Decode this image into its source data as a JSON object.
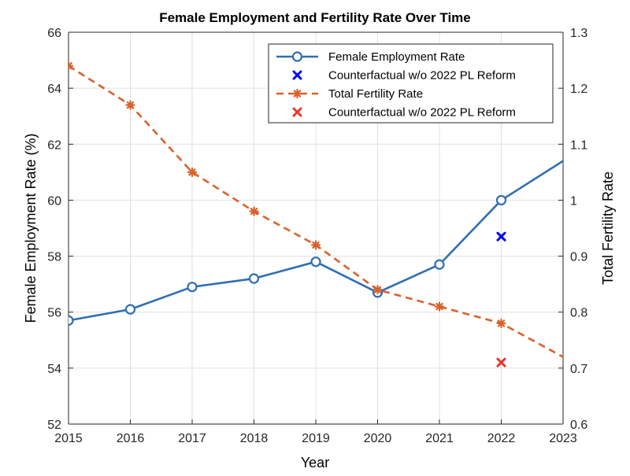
{
  "chart_data": {
    "type": "line",
    "title": "Female Employment and Fertility Rate Over Time",
    "xlabel": "Year",
    "ylabel_left": "Female Employment Rate (%)",
    "ylabel_right": "Total Fertility Rate",
    "xlim": [
      2015,
      2023
    ],
    "ylim_left": [
      52,
      66
    ],
    "ylim_right": [
      0.6,
      1.3
    ],
    "x_ticks": [
      "2015",
      "2016",
      "2017",
      "2018",
      "2019",
      "2020",
      "2021",
      "2022",
      "2023"
    ],
    "y_left_ticks": [
      "52",
      "54",
      "56",
      "58",
      "60",
      "62",
      "64",
      "66"
    ],
    "y_right_ticks": [
      "0.6",
      "0.7",
      "0.8",
      "0.9",
      "1",
      "1.1",
      "1.2",
      "1.3"
    ],
    "grid": true,
    "legend_position": "top-right",
    "series": [
      {
        "name": "Female Employment Rate",
        "axis": "left",
        "style": "solid-circle",
        "color": "#2f6fb3",
        "x": [
          2015,
          2016,
          2017,
          2018,
          2019,
          2020,
          2021,
          2022,
          2023
        ],
        "y": [
          55.7,
          56.1,
          56.9,
          57.2,
          57.8,
          56.7,
          57.7,
          60.0,
          61.4
        ],
        "marker_x": [
          2015,
          2016,
          2017,
          2018,
          2019,
          2020,
          2021,
          2022
        ]
      },
      {
        "name": "Counterfactual w/o 2022 PL Reform",
        "axis": "left",
        "style": "x-marker",
        "color": "#0000ff",
        "x": [
          2022
        ],
        "y": [
          58.7
        ]
      },
      {
        "name": "Total Fertility Rate",
        "axis": "right",
        "style": "dashed-asterisk",
        "color": "#d9622b",
        "x": [
          2015,
          2016,
          2017,
          2018,
          2019,
          2020,
          2021,
          2022,
          2023
        ],
        "y": [
          1.24,
          1.17,
          1.05,
          0.98,
          0.92,
          0.84,
          0.81,
          0.78,
          0.72
        ],
        "marker_x": [
          2015,
          2016,
          2017,
          2018,
          2019,
          2020,
          2021,
          2022
        ]
      },
      {
        "name": "Counterfactual w/o 2022 PL Reform",
        "axis": "right",
        "style": "x-marker",
        "color": "#e8372c",
        "x": [
          2022
        ],
        "y": [
          0.71
        ]
      }
    ]
  }
}
